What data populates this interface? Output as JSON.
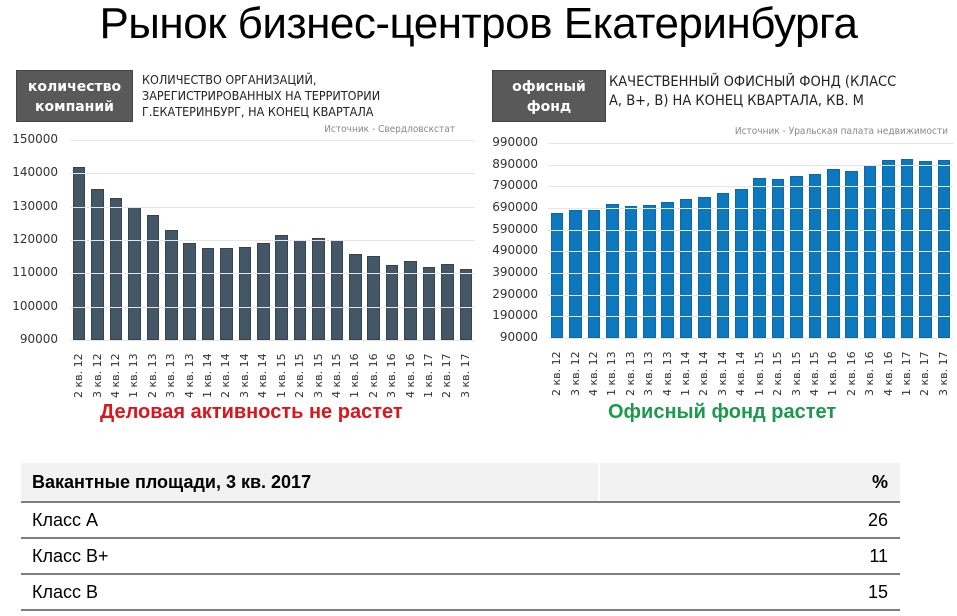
{
  "page": {
    "title": "Рынок бизнес-центров Екатеринбурга"
  },
  "left_panel": {
    "badge_line1": "количество",
    "badge_line2": "компаний",
    "title_line1": "КОЛИЧЕСТВО ОРГАНИЗАЦИЙ,",
    "title_line2": "ЗАРЕГИСТРИРОВАННЫХ НА ТЕРРИТОРИИ",
    "title_line3": "Г.ЕКАТЕРИНБУРГ, НА КОНЕЦ КВАРТАЛА",
    "source": "Источник - Свердловскстат",
    "caption": "Деловая активность не растет",
    "caption_color": "#d9161c",
    "bar_color": "#435766"
  },
  "right_panel": {
    "badge_line1": "офисный",
    "badge_line2": "фонд",
    "title_line1": "КАЧЕСТВЕННЫЙ ОФИСНЫЙ ФОНД (КЛАСС",
    "title_line2": "А, В+, В) НА КОНЕЦ КВАРТАЛА, КВ. М",
    "source": "Источник - Уральская палата недвижимости",
    "caption": "Офисный фонд растет",
    "caption_color": "#1a9a4a",
    "bar_color": "#0d78bd"
  },
  "chart_data": [
    {
      "type": "bar",
      "title": "Количество организаций, зарегистрированных на территории г.Екатеринбург, на конец квартала",
      "xlabel": "",
      "ylabel": "",
      "ylim": [
        90000,
        150000
      ],
      "yticks": [
        "150000",
        "140000",
        "130000",
        "120000",
        "110000",
        "100000",
        "90000"
      ],
      "grid": true,
      "legend": "none",
      "categories": [
        "2 кв. 12",
        "3 кв. 12",
        "4 кв. 12",
        "1 кв. 13",
        "2 кв. 13",
        "3 кв. 13",
        "4 кв. 13",
        "1 кв. 14",
        "2 кв. 14",
        "3 кв. 14",
        "4 кв. 14",
        "1 кв. 15",
        "2 кв. 15",
        "3 кв. 15",
        "4 кв. 15",
        "1 кв. 16",
        "2 кв. 16",
        "3 кв. 16",
        "4 кв. 16",
        "1 кв. 17",
        "2 кв. 17",
        "3 кв. 17"
      ],
      "values": [
        142000,
        135300,
        132600,
        129800,
        127400,
        123000,
        119000,
        117600,
        117600,
        117800,
        119200,
        121500,
        120000,
        120600,
        120000,
        115700,
        115300,
        112400,
        113700,
        111900,
        112700,
        111300
      ],
      "source": "Источник - Свердловскстат"
    },
    {
      "type": "bar",
      "title": "Качественный офисный фонд (класс А, В+, В) на конец квартала, кв. м",
      "xlabel": "",
      "ylabel": "",
      "ylim": [
        90000,
        990000
      ],
      "yticks": [
        "990000",
        "890000",
        "790000",
        "690000",
        "590000",
        "490000",
        "390000",
        "290000",
        "190000",
        "90000"
      ],
      "grid": true,
      "legend": "none",
      "categories": [
        "2 кв. 12",
        "3 кв. 12",
        "4 кв. 12",
        "1 кв. 13",
        "2 кв. 13",
        "3 кв. 13",
        "4 кв. 13",
        "1 кв. 14",
        "2 кв. 14",
        "3 кв. 14",
        "4 кв. 14",
        "1 кв. 15",
        "2 кв. 15",
        "3 кв. 15",
        "4 кв. 15",
        "1 кв. 16",
        "2 кв. 16",
        "3 кв. 16",
        "4 кв. 16",
        "1 кв. 17",
        "2 кв. 17",
        "3 кв. 17"
      ],
      "values": [
        667000,
        680000,
        680000,
        709000,
        700000,
        703000,
        718000,
        733000,
        742000,
        760000,
        780000,
        828000,
        825000,
        838000,
        847000,
        868000,
        862000,
        890000,
        913000,
        915000,
        908000,
        912000
      ],
      "source": "Источник - Уральская палата недвижимости"
    }
  ],
  "vacancy_table": {
    "header_label": "Вакантные площади, 3 кв. 2017",
    "header_unit": "%",
    "rows": [
      {
        "label": "Класс А",
        "value": "26"
      },
      {
        "label": "Класс В+",
        "value": "11"
      },
      {
        "label": "Класс В",
        "value": "15"
      }
    ]
  }
}
